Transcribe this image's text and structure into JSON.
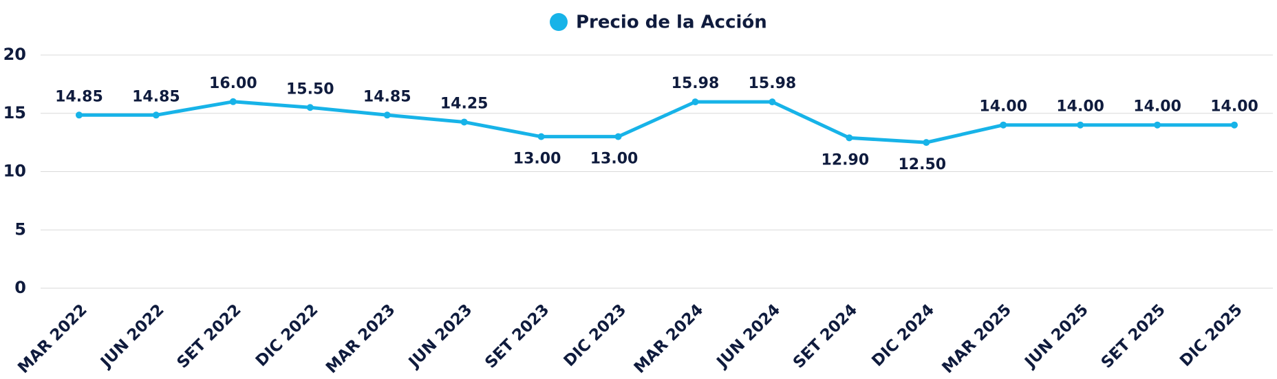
{
  "chart_data": {
    "type": "line",
    "categories": [
      "MAR 2022",
      "JUN 2022",
      "SET 2022",
      "DIC 2022",
      "MAR 2023",
      "JUN 2023",
      "SET 2023",
      "DIC 2023",
      "MAR 2024",
      "JUN 2024",
      "SET 2024",
      "DIC 2024",
      "MAR 2025",
      "JUN 2025",
      "SET 2025",
      "DIC 2025"
    ],
    "series": [
      {
        "name": "Precio de la Acción",
        "color": "#17b3e8",
        "values": [
          14.85,
          14.85,
          16.0,
          15.5,
          14.85,
          14.25,
          13.0,
          13.0,
          15.98,
          15.98,
          12.9,
          12.5,
          14.0,
          14.0,
          14.0,
          14.0
        ],
        "value_labels": [
          "14.85",
          "14.85",
          "16.00",
          "15.50",
          "14.85",
          "14.25",
          "13.00",
          "13.00",
          "15.98",
          "15.98",
          "12.90",
          "12.50",
          "14.00",
          "14.00",
          "14.00",
          "14.00"
        ]
      }
    ],
    "ylim": [
      0,
      20
    ],
    "yticks": [
      0,
      5,
      10,
      15,
      20
    ],
    "grid": true,
    "legend": "top"
  }
}
